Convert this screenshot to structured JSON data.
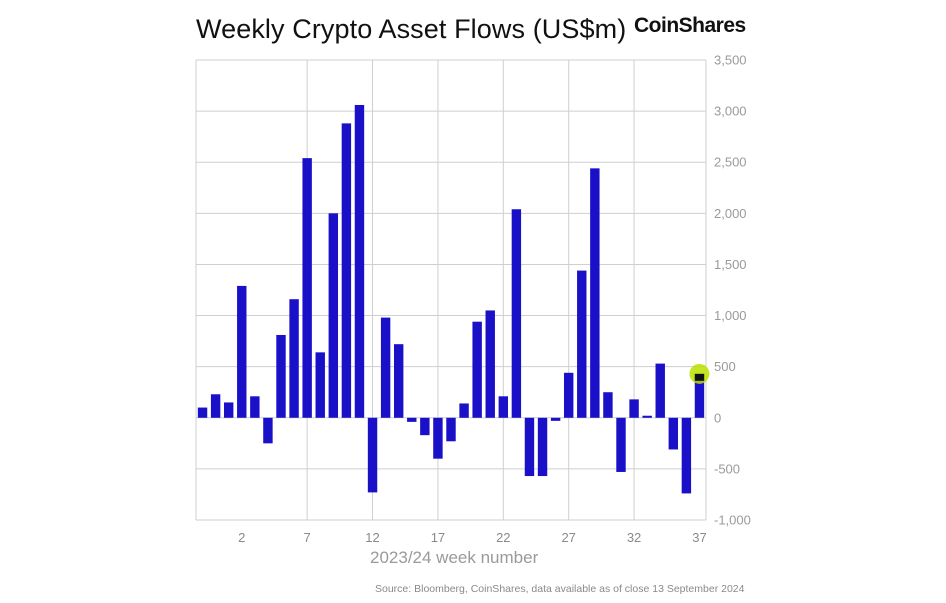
{
  "header": {
    "title": "Weekly Crypto Asset Flows (US$m)",
    "brand": "CoinShares"
  },
  "footer": {
    "xlabel": "2023/24 week number",
    "source": "Source: Bloomberg, CoinShares, data available as of close 13 September 2024"
  },
  "colors": {
    "bar": "#1a10c8",
    "grid": "#cfcfcf",
    "highlight": "#b8e000",
    "last_bar_top": "#111111"
  },
  "chart_data": {
    "type": "bar",
    "title": "Weekly Crypto Asset Flows (US$m)",
    "xlabel": "2023/24 week number",
    "ylabel": "",
    "ylim": [
      -1000,
      3500
    ],
    "yticks": [
      -1000,
      -500,
      0,
      500,
      1000,
      1500,
      2000,
      2500,
      3000,
      3500
    ],
    "ytick_labels": [
      "-1,000",
      "-500",
      "0",
      "500",
      "1,000",
      "1,500",
      "2,000",
      "2,500",
      "3,000",
      "3,500"
    ],
    "xticks": [
      2,
      7,
      12,
      17,
      22,
      27,
      32,
      37
    ],
    "x": [
      -1,
      0,
      1,
      2,
      3,
      4,
      5,
      6,
      7,
      8,
      9,
      10,
      11,
      12,
      13,
      14,
      15,
      16,
      17,
      18,
      19,
      20,
      21,
      22,
      23,
      24,
      25,
      26,
      27,
      28,
      29,
      30,
      31,
      32,
      33,
      34,
      35,
      36,
      37
    ],
    "values": [
      100,
      230,
      150,
      1290,
      210,
      -250,
      810,
      1160,
      2540,
      640,
      2000,
      2880,
      3060,
      -730,
      980,
      720,
      -40,
      -170,
      -400,
      -230,
      140,
      940,
      1050,
      210,
      2040,
      -570,
      -570,
      -30,
      440,
      1440,
      2440,
      250,
      -530,
      180,
      20,
      530,
      -310,
      -740,
      430
    ],
    "highlight_point": {
      "x": 37,
      "value": 430
    },
    "grid": "on"
  }
}
